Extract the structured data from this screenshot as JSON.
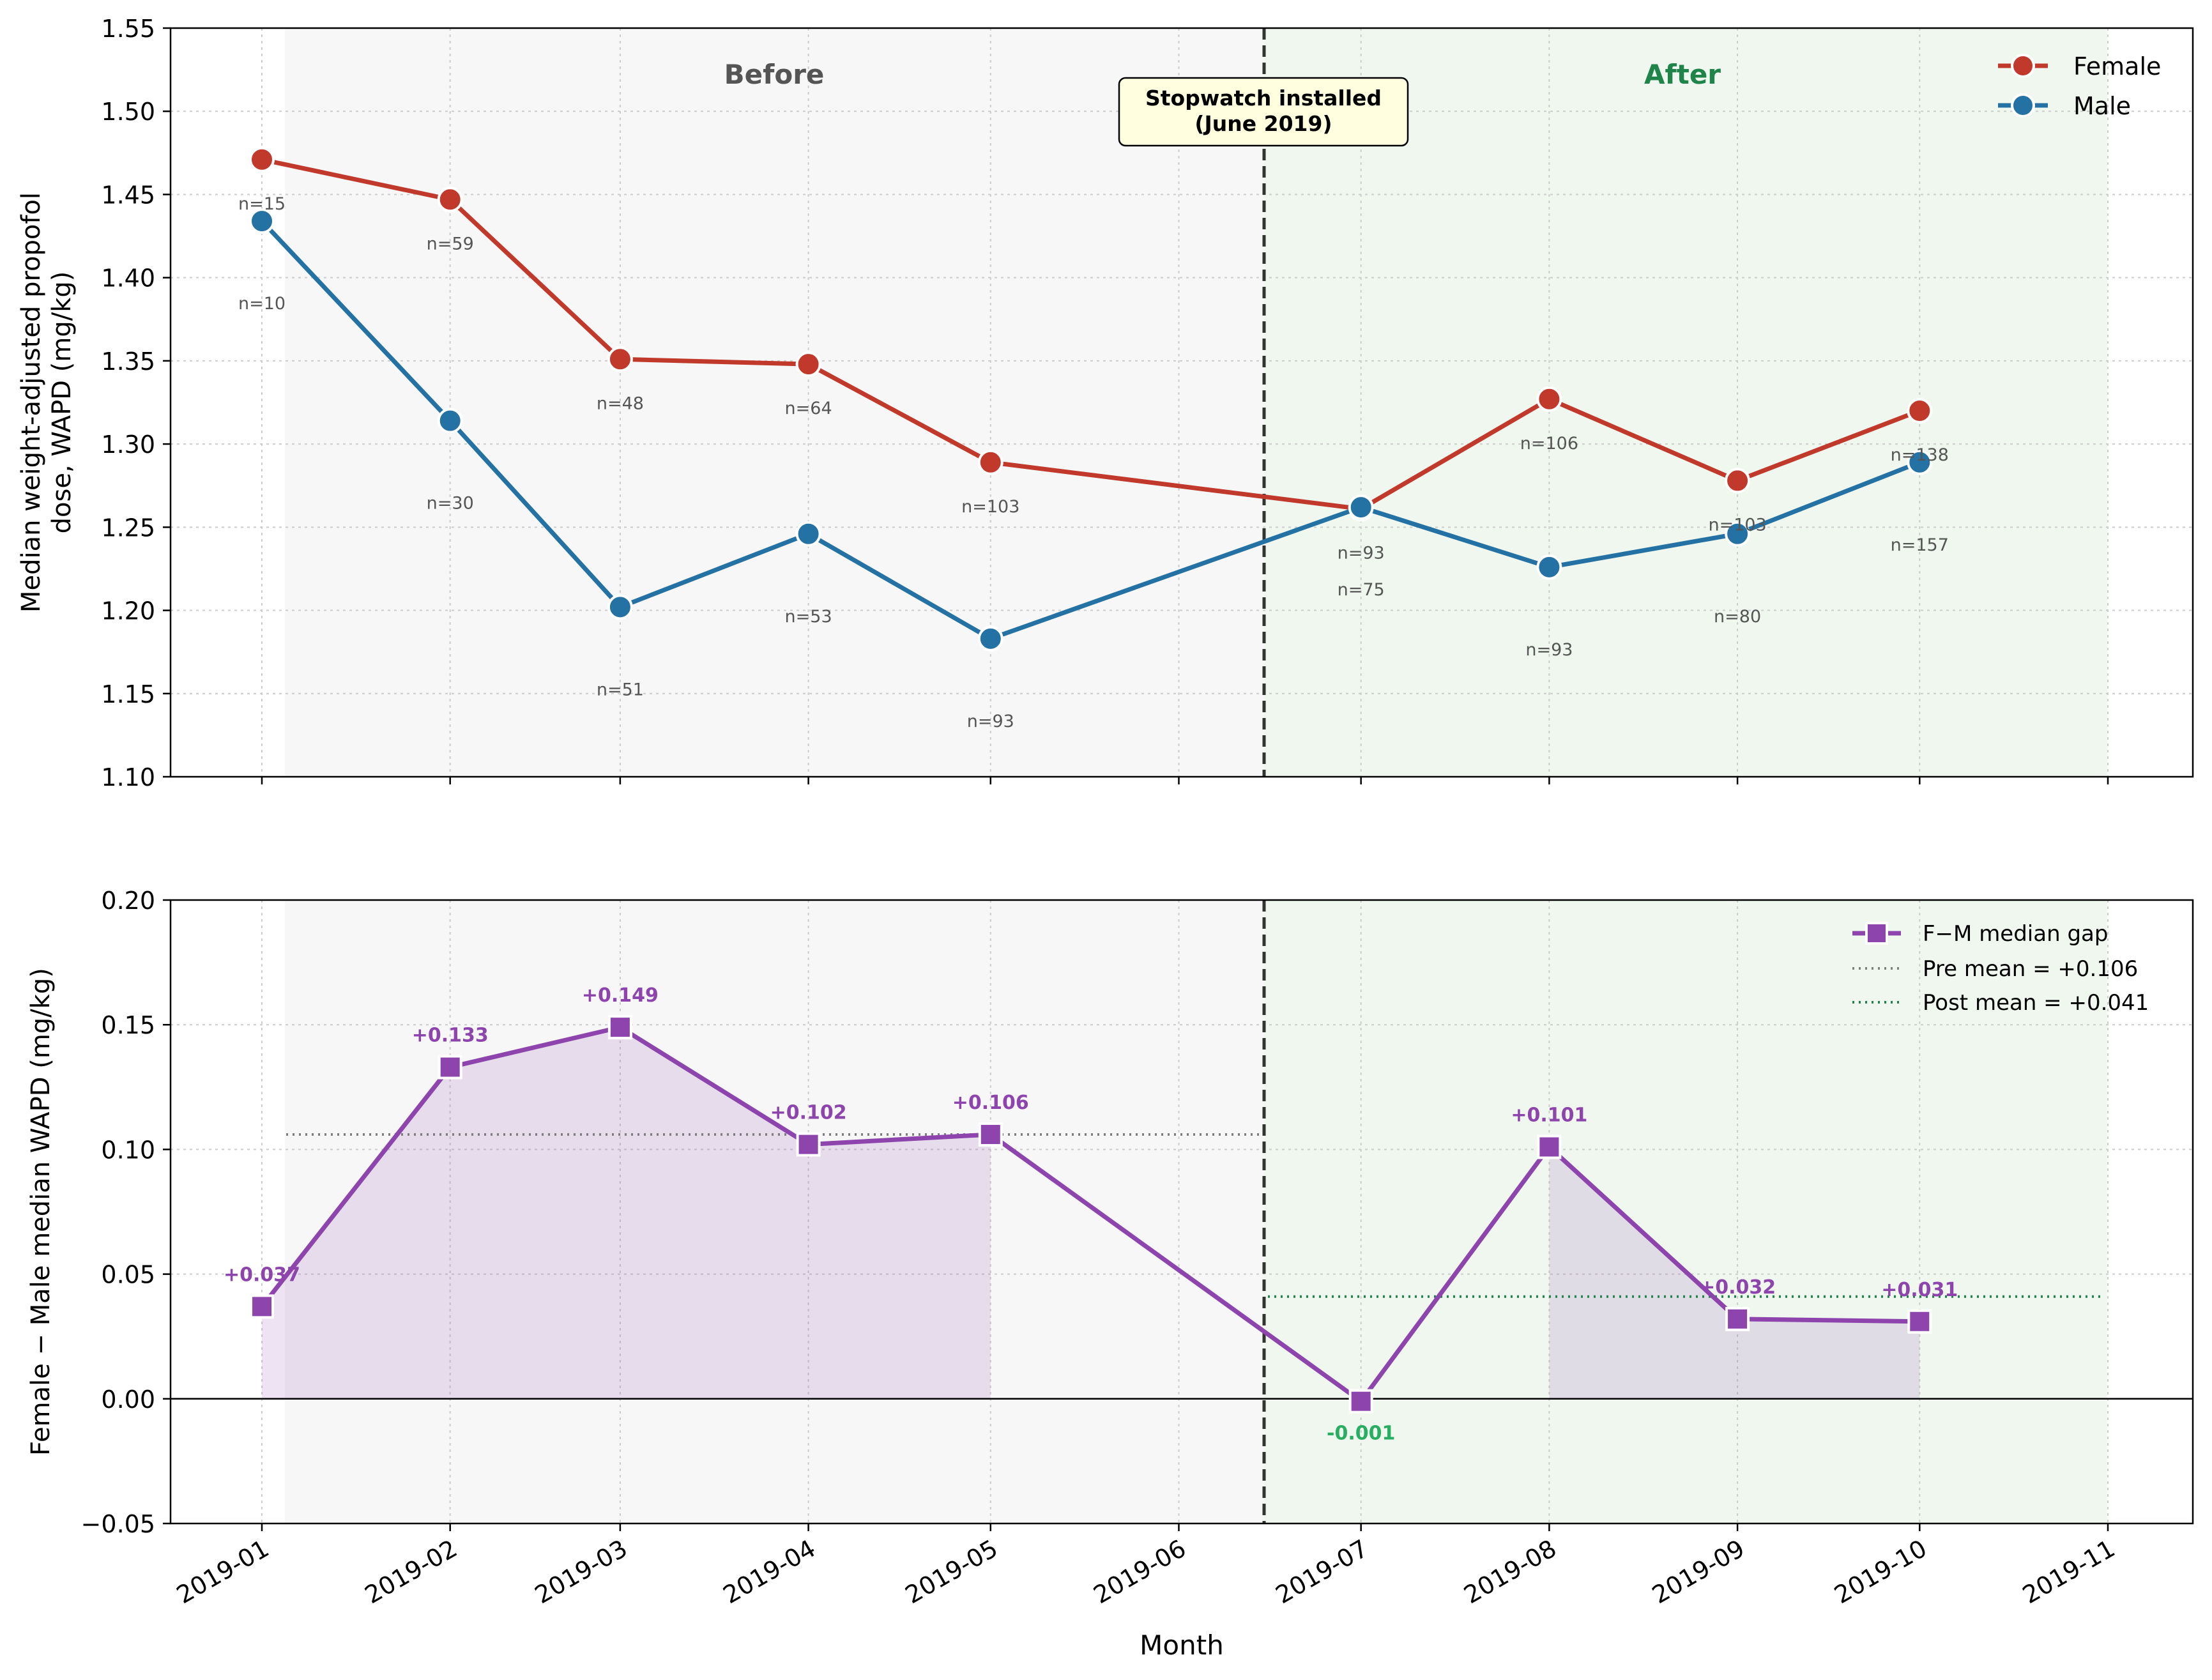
{
  "chart_data": [
    {
      "type": "line",
      "panel": "top",
      "ylabel": "Median weight-adjusted propofol\ndose, WAPD (mg/kg)",
      "ylim": [
        1.1,
        1.55
      ],
      "yticks": [
        "1.10",
        "1.15",
        "1.20",
        "1.25",
        "1.30",
        "1.35",
        "1.40",
        "1.45",
        "1.50",
        "1.55"
      ],
      "grid": true,
      "legend": "top-right",
      "region_labels": {
        "before": "Before",
        "after": "After"
      },
      "annotation": "Stopwatch installed\n(June 2019)",
      "series": [
        {
          "name": "Female",
          "color": "#c0392b",
          "x": [
            "2019-01",
            "2019-02",
            "2019-03",
            "2019-04",
            "2019-05",
            "2019-07",
            "2019-08",
            "2019-09",
            "2019-10"
          ],
          "values": [
            1.471,
            1.447,
            1.351,
            1.348,
            1.289,
            1.261,
            1.327,
            1.278,
            1.32
          ],
          "n": [
            "n=15",
            "n=59",
            "n=48",
            "n=64",
            "n=103",
            "n=93",
            "n=106",
            "n=103",
            "n=138"
          ]
        },
        {
          "name": "Male",
          "color": "#2471a3",
          "x": [
            "2019-01",
            "2019-02",
            "2019-03",
            "2019-04",
            "2019-05",
            "2019-07",
            "2019-08",
            "2019-09",
            "2019-10"
          ],
          "values": [
            1.434,
            1.314,
            1.202,
            1.246,
            1.183,
            1.262,
            1.226,
            1.246,
            1.289
          ],
          "n": [
            "n=10",
            "n=30",
            "n=51",
            "n=53",
            "n=93",
            "n=75",
            "n=93",
            "n=80",
            "n=157"
          ]
        }
      ]
    },
    {
      "type": "line",
      "panel": "bottom",
      "xlabel": "Month",
      "ylabel": "Female − Male median WAPD (mg/kg)",
      "ylim": [
        -0.05,
        0.2
      ],
      "yticks": [
        "−0.05",
        "0.00",
        "0.05",
        "0.10",
        "0.15",
        "0.20"
      ],
      "xticks": [
        "2019-01",
        "2019-02",
        "2019-03",
        "2019-04",
        "2019-05",
        "2019-06",
        "2019-07",
        "2019-08",
        "2019-09",
        "2019-10",
        "2019-11"
      ],
      "grid": true,
      "legend": "top-right",
      "series": [
        {
          "name": "F−M median gap",
          "color": "#8e44ad",
          "x": [
            "2019-01",
            "2019-02",
            "2019-03",
            "2019-04",
            "2019-05",
            "2019-07",
            "2019-08",
            "2019-09",
            "2019-10"
          ],
          "values": [
            0.037,
            0.133,
            0.149,
            0.102,
            0.106,
            -0.001,
            0.101,
            0.032,
            0.031
          ],
          "labels": [
            "+0.037",
            "+0.133",
            "+0.149",
            "+0.102",
            "+0.106",
            "-0.001",
            "+0.101",
            "+0.032",
            "+0.031"
          ]
        }
      ],
      "reference_lines": [
        {
          "name": "Pre mean = +0.106",
          "value": 0.106,
          "color": "#7f7f7f"
        },
        {
          "name": "Post mean = +0.041",
          "value": 0.041,
          "color": "#1e8449"
        }
      ]
    }
  ],
  "colors": {
    "female": "#c0392b",
    "male": "#2471a3",
    "gap": "#8e44ad",
    "gap_negative_label": "#27ae60",
    "after_label": "#1e8449",
    "before_label": "#555555",
    "annotation_bg": "#ffffe0"
  }
}
